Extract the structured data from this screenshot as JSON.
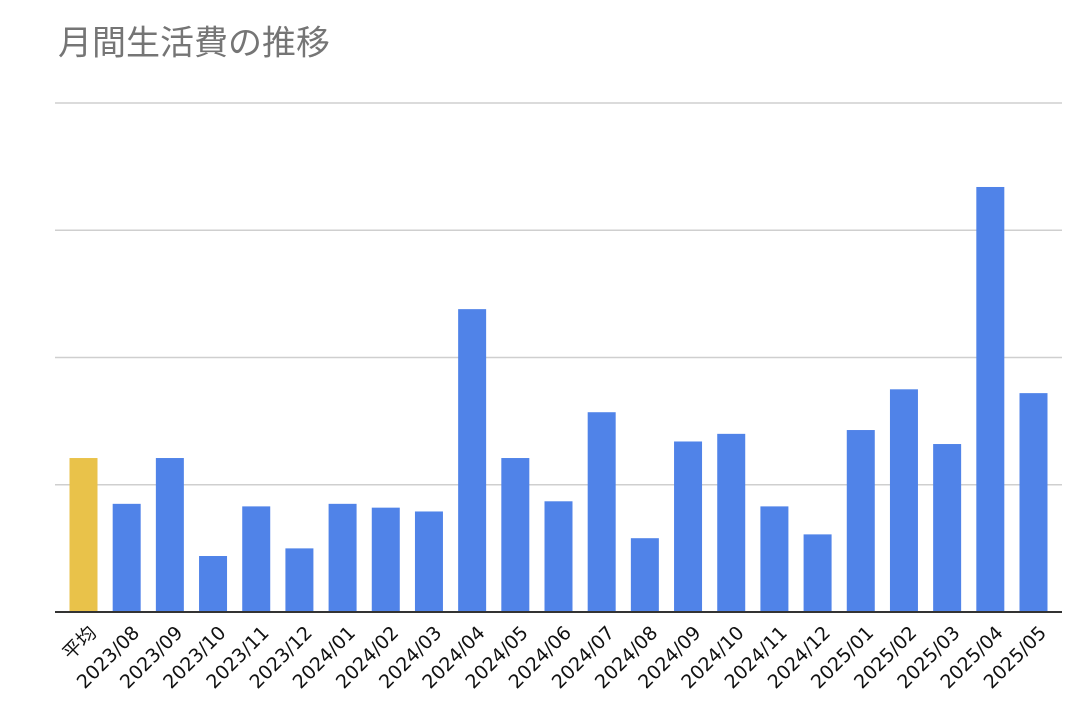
{
  "chart_data": {
    "type": "bar",
    "title": "月間生活費の推移",
    "categories": [
      "平均",
      "2023/08",
      "2023/09",
      "2023/10",
      "2023/11",
      "2023/12",
      "2024/01",
      "2024/02",
      "2024/03",
      "2024/04",
      "2024/05",
      "2024/06",
      "2024/07",
      "2024/08",
      "2024/09",
      "2024/10",
      "2024/11",
      "2024/12",
      "2025/01",
      "2025/02",
      "2025/03",
      "2025/04",
      "2025/05"
    ],
    "values": [
      1.21,
      0.85,
      1.21,
      0.44,
      0.83,
      0.5,
      0.85,
      0.82,
      0.79,
      2.38,
      1.21,
      0.87,
      1.57,
      0.58,
      1.34,
      1.4,
      0.83,
      0.61,
      1.43,
      1.75,
      1.32,
      3.34,
      1.72
    ],
    "colors": [
      "#e9c24a",
      "#5083e8",
      "#5083e8",
      "#5083e8",
      "#5083e8",
      "#5083e8",
      "#5083e8",
      "#5083e8",
      "#5083e8",
      "#5083e8",
      "#5083e8",
      "#5083e8",
      "#5083e8",
      "#5083e8",
      "#5083e8",
      "#5083e8",
      "#5083e8",
      "#5083e8",
      "#5083e8",
      "#5083e8",
      "#5083e8",
      "#5083e8",
      "#5083e8"
    ],
    "ylim": [
      0,
      4
    ],
    "yticks": [
      0,
      1,
      2,
      3,
      4
    ],
    "grid": true
  }
}
